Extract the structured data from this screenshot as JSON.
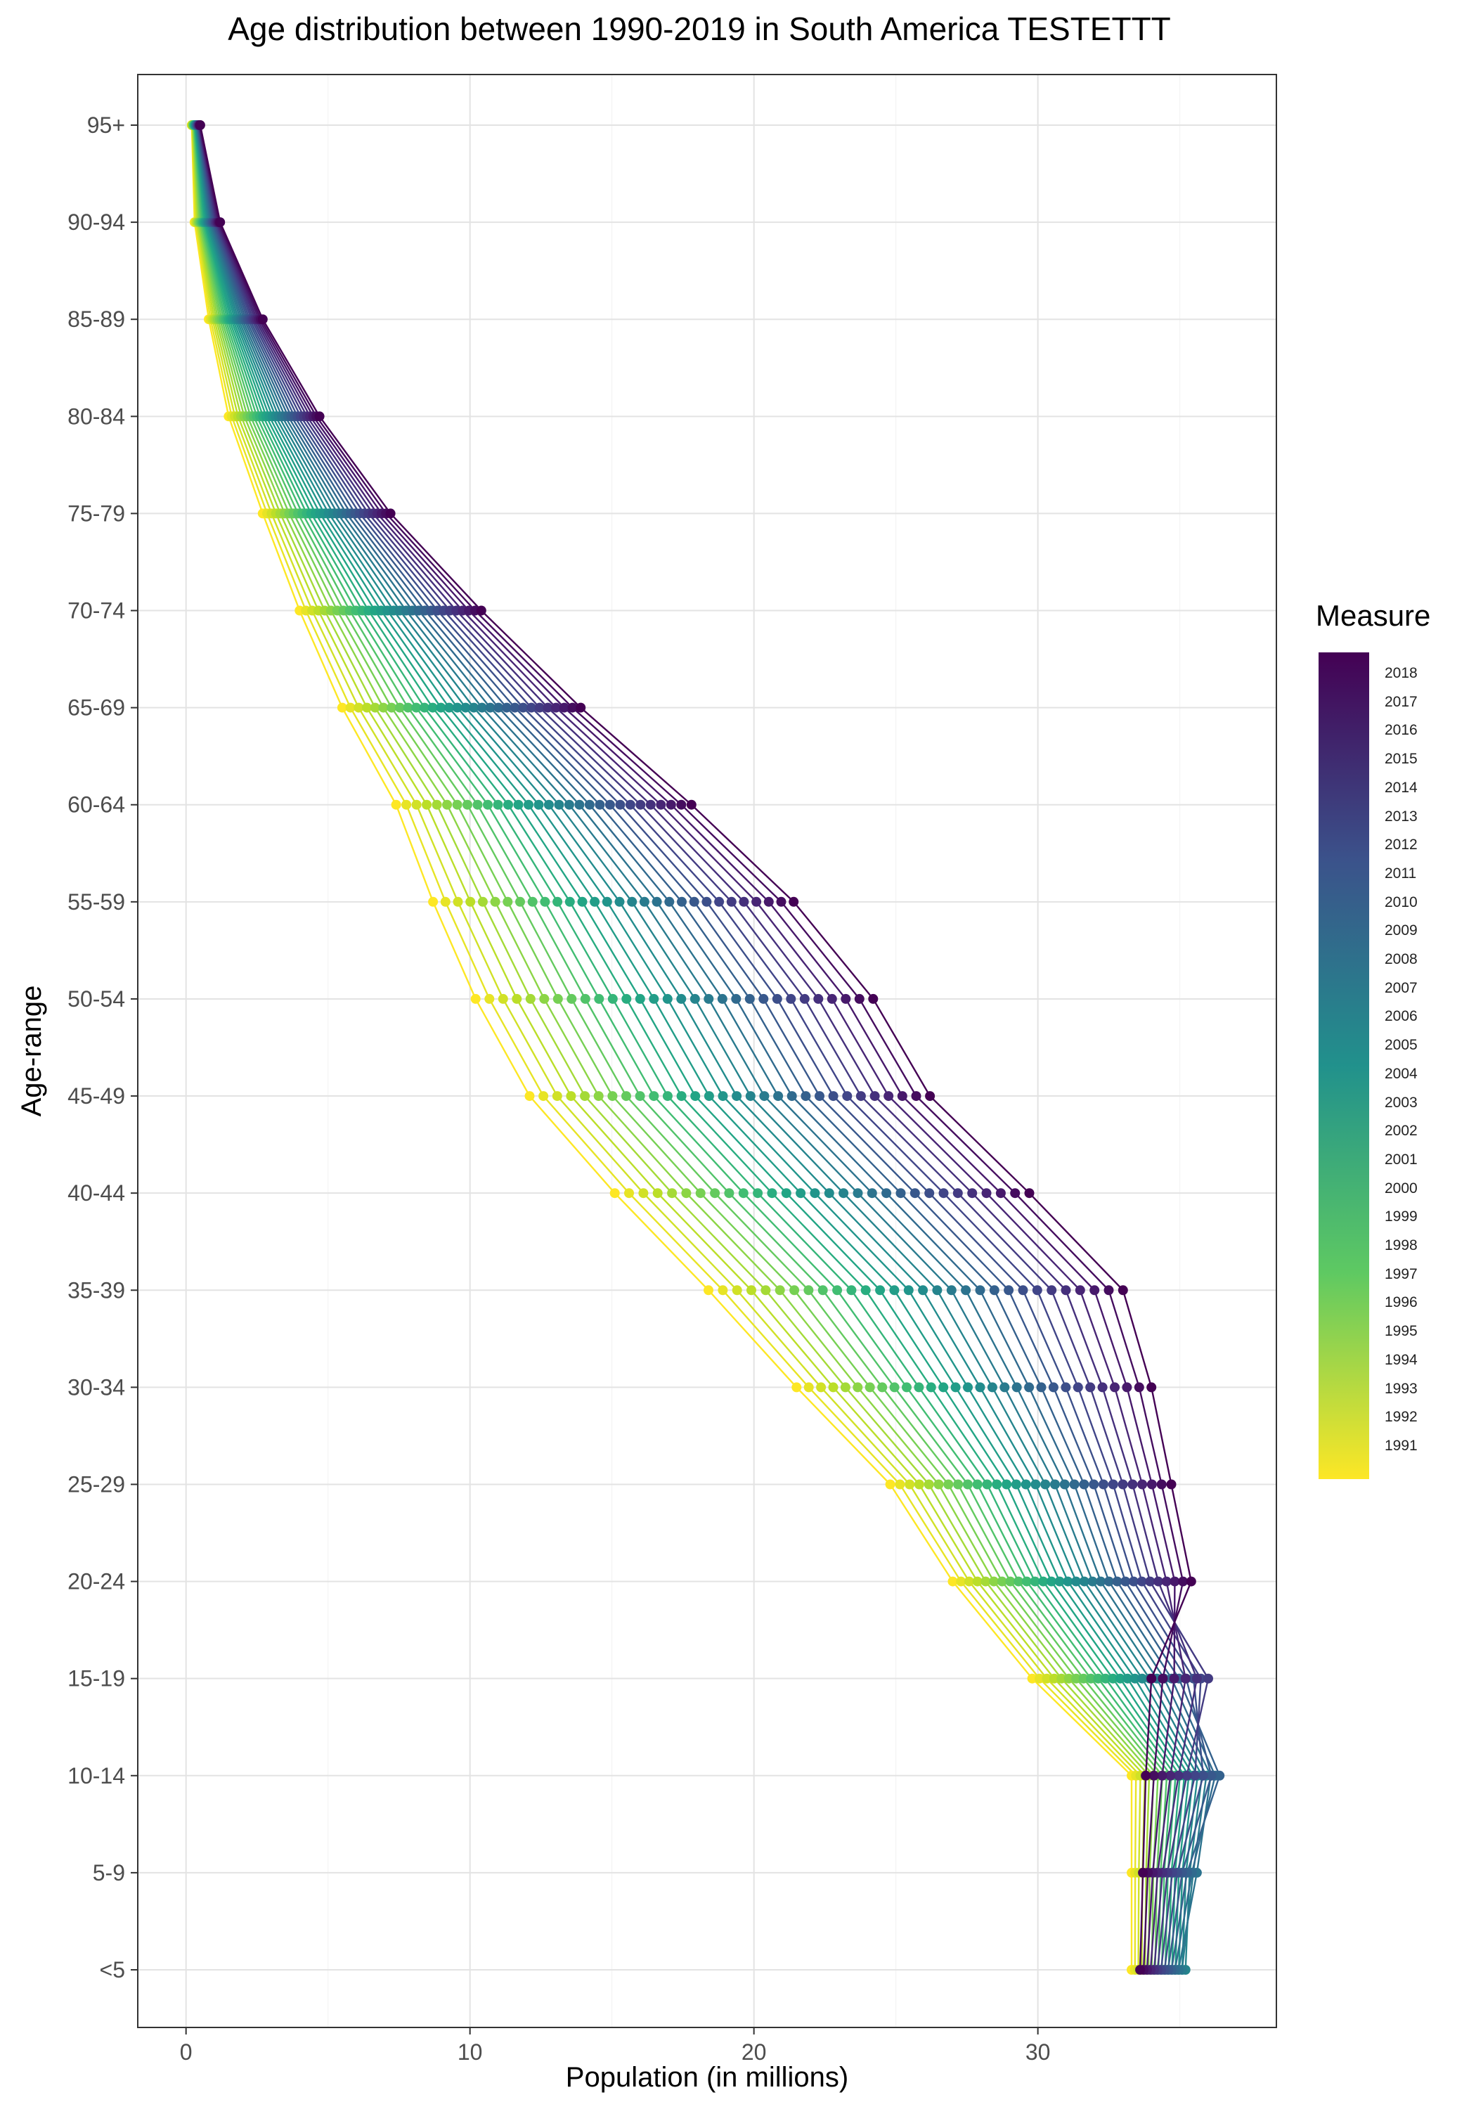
{
  "chart_data": {
    "type": "line",
    "title": "Age distribution between 1990-2019 in South America TESTETTT",
    "xlabel": "Population (in millions)",
    "ylabel": "Age-range",
    "xlim": [
      -1.7,
      38.4
    ],
    "x_ticks": [
      0,
      10,
      20,
      30
    ],
    "categories": [
      "<5",
      "5-9",
      "10-14",
      "15-19",
      "20-24",
      "25-29",
      "30-34",
      "35-39",
      "40-44",
      "45-49",
      "50-54",
      "55-59",
      "60-64",
      "65-69",
      "70-74",
      "75-79",
      "80-84",
      "85-89",
      "90-94",
      "95+"
    ],
    "grid": true,
    "legend": {
      "title": "Measure",
      "position": "right",
      "labels": [
        "2018",
        "2017",
        "2016",
        "2015",
        "2014",
        "2013",
        "2012",
        "2011",
        "2010",
        "2009",
        "2008",
        "2007",
        "2006",
        "2005",
        "2004",
        "2003",
        "2002",
        "2001",
        "2000",
        "1999",
        "1998",
        "1997",
        "1996",
        "1995",
        "1994",
        "1993",
        "1992",
        "1991"
      ],
      "colormap": "viridis (reversed: yellow = 1991, purple = 2018)"
    },
    "series_range": [
      1990,
      2019
    ],
    "series_values_1990": [
      33.3,
      33.3,
      33.3,
      29.8,
      27.0,
      24.8,
      21.5,
      18.4,
      15.1,
      12.1,
      10.2,
      8.7,
      7.4,
      5.5,
      4.0,
      2.7,
      1.5,
      0.8,
      0.3,
      0.2
    ],
    "series_values_2019": [
      33.6,
      33.7,
      33.8,
      34.0,
      35.4,
      34.7,
      34.0,
      33.0,
      29.7,
      26.2,
      24.2,
      21.4,
      17.8,
      13.9,
      10.4,
      7.2,
      4.7,
      2.7,
      1.2,
      0.5
    ],
    "series_values_peak": [
      35.2,
      35.6,
      36.4,
      36.0,
      35.4,
      34.7,
      34.0,
      33.0,
      29.7,
      26.2,
      24.2,
      21.4,
      17.8,
      13.9,
      10.4,
      7.2,
      4.7,
      2.7,
      1.2,
      0.5
    ],
    "series_peak_year": [
      2006,
      2008,
      2010,
      2014,
      2019,
      2019,
      2019,
      2019,
      2019,
      2019,
      2019,
      2019,
      2019,
      2019,
      2019,
      2019,
      2019,
      2019,
      2019,
      2019
    ]
  }
}
